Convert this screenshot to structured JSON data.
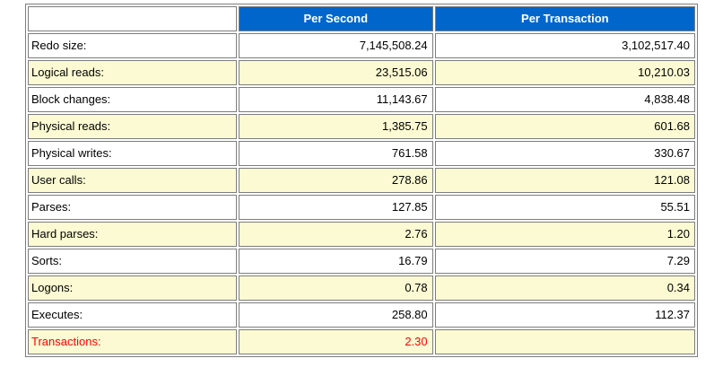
{
  "load_profile_table": {
    "columns": [
      {
        "label": ""
      },
      {
        "label": "Per Second"
      },
      {
        "label": "Per Transaction"
      }
    ],
    "rows": [
      {
        "label": "Redo size:",
        "per_second": "7,145,508.24",
        "per_transaction": "3,102,517.40",
        "alert": false
      },
      {
        "label": "Logical reads:",
        "per_second": "23,515.06",
        "per_transaction": "10,210.03",
        "alert": false
      },
      {
        "label": "Block changes:",
        "per_second": "11,143.67",
        "per_transaction": "4,838.48",
        "alert": false
      },
      {
        "label": "Physical reads:",
        "per_second": "1,385.75",
        "per_transaction": "601.68",
        "alert": false
      },
      {
        "label": "Physical writes:",
        "per_second": "761.58",
        "per_transaction": "330.67",
        "alert": false
      },
      {
        "label": "User calls:",
        "per_second": "278.86",
        "per_transaction": "121.08",
        "alert": false
      },
      {
        "label": "Parses:",
        "per_second": "127.85",
        "per_transaction": "55.51",
        "alert": false
      },
      {
        "label": "Hard parses:",
        "per_second": "2.76",
        "per_transaction": "1.20",
        "alert": false
      },
      {
        "label": "Sorts:",
        "per_second": "16.79",
        "per_transaction": "7.29",
        "alert": false
      },
      {
        "label": "Logons:",
        "per_second": "0.78",
        "per_transaction": "0.34",
        "alert": false
      },
      {
        "label": "Executes:",
        "per_second": "258.80",
        "per_transaction": "112.37",
        "alert": false
      },
      {
        "label": "Transactions:",
        "per_second": "2.30",
        "per_transaction": "",
        "alert": true
      }
    ],
    "colors": {
      "header_bg": "#0066cc",
      "header_text": "#ffffff",
      "row_bg": "#ffffff",
      "row_alt_bg": "#fbfad2",
      "alert_text": "#ff0000",
      "cell_border": "#7d7d7d",
      "text": "#000000"
    }
  },
  "chart_data": {
    "type": "table",
    "title": "",
    "columns": [
      "",
      "Per Second",
      "Per Transaction"
    ],
    "rows": [
      [
        "Redo size:",
        7145508.24,
        3102517.4
      ],
      [
        "Logical reads:",
        23515.06,
        10210.03
      ],
      [
        "Block changes:",
        11143.67,
        4838.48
      ],
      [
        "Physical reads:",
        1385.75,
        601.68
      ],
      [
        "Physical writes:",
        761.58,
        330.67
      ],
      [
        "User calls:",
        278.86,
        121.08
      ],
      [
        "Parses:",
        127.85,
        55.51
      ],
      [
        "Hard parses:",
        2.76,
        1.2
      ],
      [
        "Sorts:",
        16.79,
        7.29
      ],
      [
        "Logons:",
        0.78,
        0.34
      ],
      [
        "Executes:",
        258.8,
        112.37
      ],
      [
        "Transactions:",
        2.3,
        null
      ]
    ],
    "layout_hints": {
      "header_background": "#0066cc",
      "alternating_row_background": "#fbfad2",
      "alert_row": "Transactions:",
      "alert_color": "#ff0000",
      "value_alignment": "right"
    }
  }
}
